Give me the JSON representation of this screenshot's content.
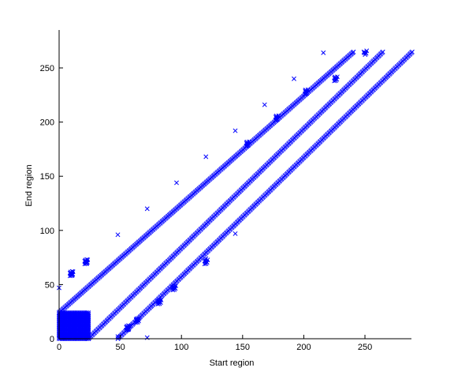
{
  "chart_data": {
    "type": "scatter",
    "title": "",
    "xlabel": "Start region",
    "ylabel": "End region",
    "xlim": [
      0,
      288
    ],
    "ylim": [
      0,
      285
    ],
    "xticks": [
      0,
      50,
      100,
      150,
      200,
      250
    ],
    "yticks": [
      0,
      50,
      100,
      150,
      200,
      250
    ],
    "grid": false,
    "marker": "x",
    "marker_color": "#0000ff",
    "series": [
      {
        "values_description_free": true,
        "points": [
          [
            0,
            47
          ],
          [
            48,
            96
          ],
          [
            72,
            120
          ],
          [
            96,
            144
          ],
          [
            120,
            168
          ],
          [
            144,
            192
          ],
          [
            168,
            216
          ],
          [
            192,
            240
          ],
          [
            216,
            264
          ],
          [
            240,
            264
          ],
          [
            144,
            97
          ],
          [
            120,
            74
          ],
          [
            72,
            1
          ],
          [
            48,
            2
          ]
        ],
        "runs": [
          {
            "x0": 0,
            "y0": 24,
            "x1": 240,
            "y1": 264,
            "step": 1.5
          },
          {
            "x0": 24,
            "y0": 0,
            "x1": 264,
            "y1": 264,
            "step": 1.5
          },
          {
            "x0": 48,
            "y0": 0,
            "x1": 288,
            "y1": 264,
            "step": 1.5
          }
        ],
        "clusters": [
          {
            "x": 10,
            "y": 60,
            "n": 14
          },
          {
            "x": 22,
            "y": 71,
            "n": 14
          },
          {
            "x": 56,
            "y": 10,
            "n": 12
          },
          {
            "x": 64,
            "y": 17,
            "n": 10
          },
          {
            "x": 82,
            "y": 34,
            "n": 10
          },
          {
            "x": 94,
            "y": 47,
            "n": 10
          },
          {
            "x": 120,
            "y": 71,
            "n": 8
          },
          {
            "x": 154,
            "y": 180,
            "n": 8
          },
          {
            "x": 178,
            "y": 204,
            "n": 8
          },
          {
            "x": 202,
            "y": 228,
            "n": 8
          },
          {
            "x": 226,
            "y": 240,
            "n": 8
          },
          {
            "x": 250,
            "y": 264,
            "n": 6
          }
        ],
        "block": {
          "x0": 0,
          "y0": 0,
          "x1": 24,
          "y1": 24
        }
      }
    ]
  }
}
